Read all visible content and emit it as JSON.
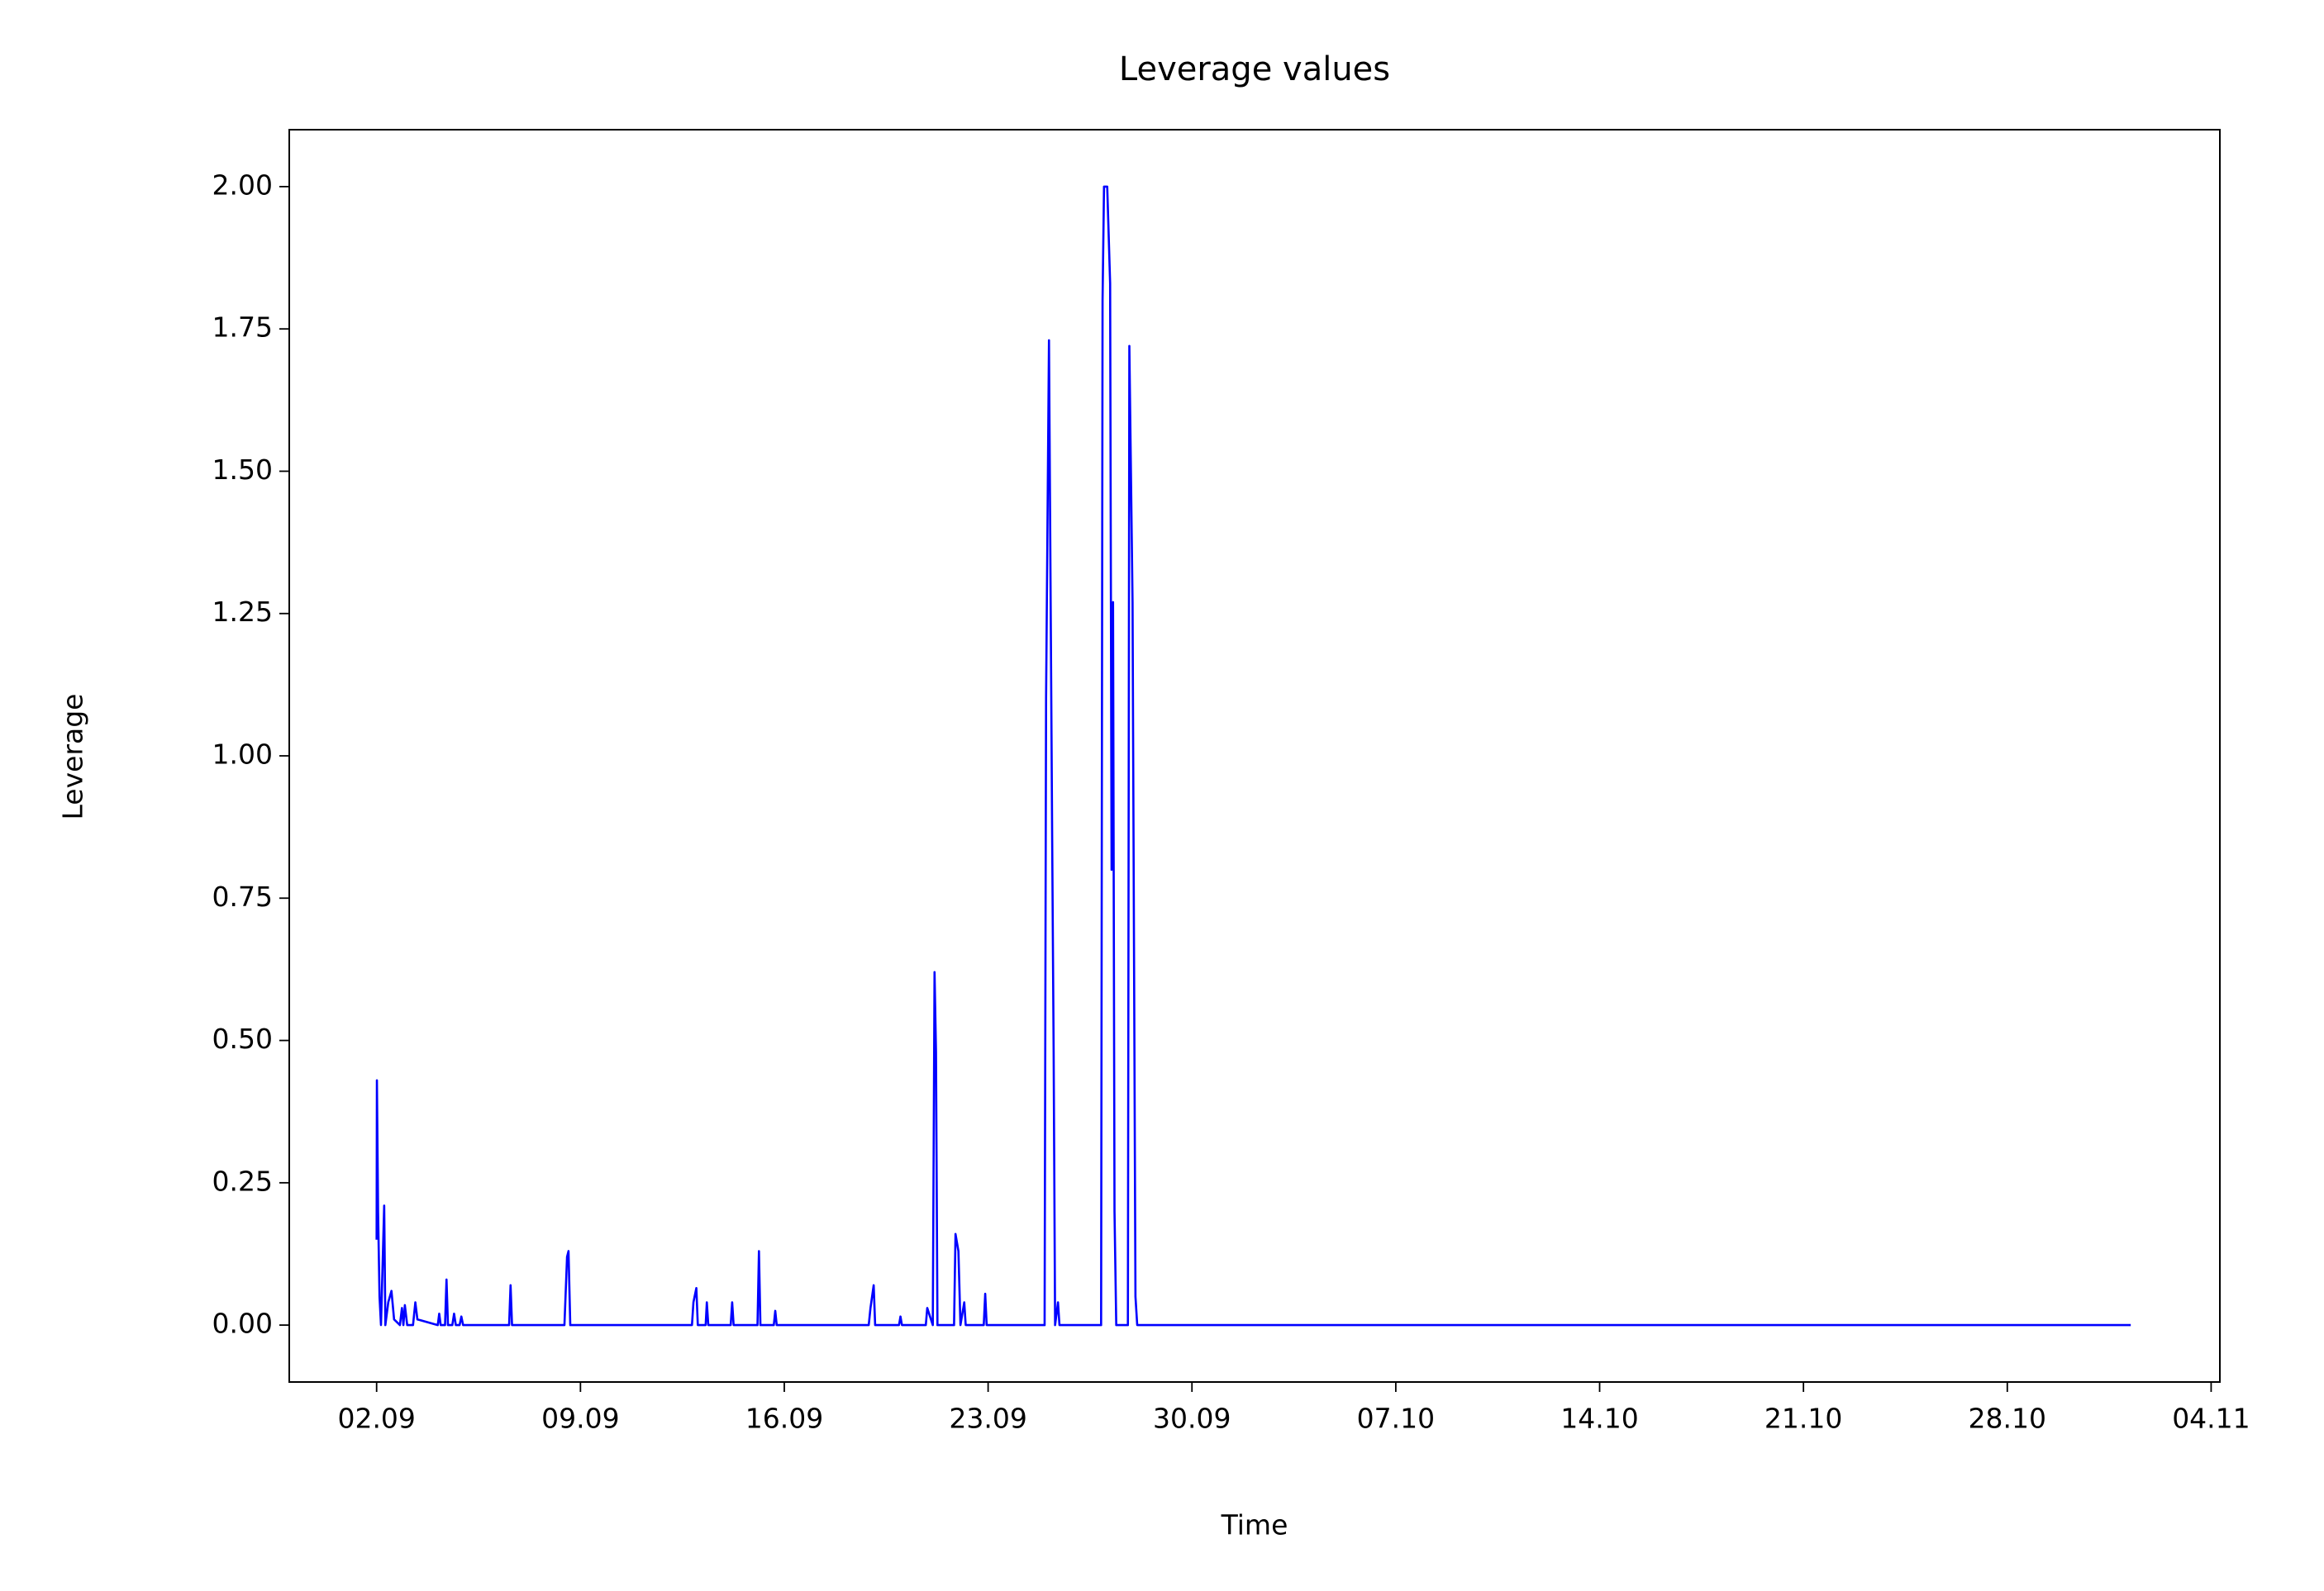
{
  "chart_data": {
    "type": "line",
    "title": "Leverage values",
    "x_label": "Time",
    "y_label": "Leverage",
    "color": "#0000ff",
    "x": [
      2.0,
      2.01,
      2.05,
      2.1,
      2.15,
      2.26,
      2.3,
      2.4,
      2.51,
      2.6,
      2.8,
      2.87,
      2.92,
      2.97,
      3.05,
      3.25,
      3.33,
      3.4,
      4.1,
      4.15,
      4.2,
      4.35,
      4.4,
      4.45,
      4.6,
      4.66,
      4.72,
      4.85,
      4.91,
      4.97,
      6.55,
      6.6,
      6.65,
      8.45,
      8.54,
      8.59,
      8.65,
      12.83,
      12.88,
      12.98,
      13.03,
      13.3,
      13.34,
      13.39,
      14.16,
      14.21,
      14.26,
      15.08,
      15.13,
      15.18,
      15.64,
      15.69,
      15.74,
      18.9,
      18.96,
      19.07,
      19.12,
      19.94,
      19.99,
      20.04,
      20.86,
      20.91,
      21.1,
      21.16,
      21.21,
      21.26,
      21.83,
      21.88,
      21.98,
      22.05,
      22.18,
      22.23,
      22.85,
      22.9,
      22.95,
      24.94,
      24.99,
      25.09,
      25.2,
      25.25,
      25.3,
      25.4,
      25.45,
      26.88,
      26.93,
      26.98,
      27.09,
      27.19,
      27.24,
      27.29,
      27.34,
      27.4,
      27.8,
      27.85,
      27.96,
      28.06,
      28.12,
      62.24
    ],
    "values": [
      0.15,
      0.43,
      0.2,
      0.05,
      0,
      0.21,
      0,
      0.04,
      0.06,
      0.01,
      0,
      0.03,
      0,
      0.035,
      0,
      0,
      0.04,
      0.01,
      0,
      0.02,
      0,
      0,
      0.08,
      0,
      0,
      0.02,
      0,
      0,
      0.015,
      0,
      0,
      0.07,
      0,
      0,
      0.12,
      0.13,
      0,
      0,
      0.04,
      0.065,
      0,
      0,
      0.04,
      0,
      0,
      0.04,
      0,
      0,
      0.13,
      0,
      0,
      0.025,
      0,
      0,
      0.03,
      0.07,
      0,
      0,
      0.015,
      0,
      0,
      0.03,
      0,
      0.62,
      0.48,
      0,
      0,
      0.16,
      0.13,
      0,
      0.04,
      0,
      0,
      0.055,
      0,
      0,
      1.1,
      1.73,
      0.85,
      0.48,
      0,
      0.04,
      0,
      0,
      1.8,
      2.0,
      2.0,
      1.83,
      0.8,
      1.27,
      0.2,
      0,
      0,
      1.72,
      1.27,
      0.05,
      0,
      0
    ],
    "xlim": [
      -1.0,
      65.3
    ],
    "ylim": [
      -0.1,
      2.1
    ],
    "xticks": [
      {
        "value": 2,
        "label": "02.09"
      },
      {
        "value": 9,
        "label": "09.09"
      },
      {
        "value": 16,
        "label": "16.09"
      },
      {
        "value": 23,
        "label": "23.09"
      },
      {
        "value": 30,
        "label": "30.09"
      },
      {
        "value": 37,
        "label": "07.10"
      },
      {
        "value": 44,
        "label": "14.10"
      },
      {
        "value": 51,
        "label": "21.10"
      },
      {
        "value": 58,
        "label": "28.10"
      },
      {
        "value": 65,
        "label": "04.11"
      }
    ],
    "yticks": [
      {
        "value": 0,
        "label": "0.00"
      },
      {
        "value": 0.25,
        "label": "0.25"
      },
      {
        "value": 0.5,
        "label": "0.50"
      },
      {
        "value": 0.75,
        "label": "0.75"
      },
      {
        "value": 1,
        "label": "1.00"
      },
      {
        "value": 1.25,
        "label": "1.25"
      },
      {
        "value": 1.5,
        "label": "1.50"
      },
      {
        "value": 1.75,
        "label": "1.75"
      },
      {
        "value": 2,
        "label": "2.00"
      }
    ],
    "grid": false
  }
}
